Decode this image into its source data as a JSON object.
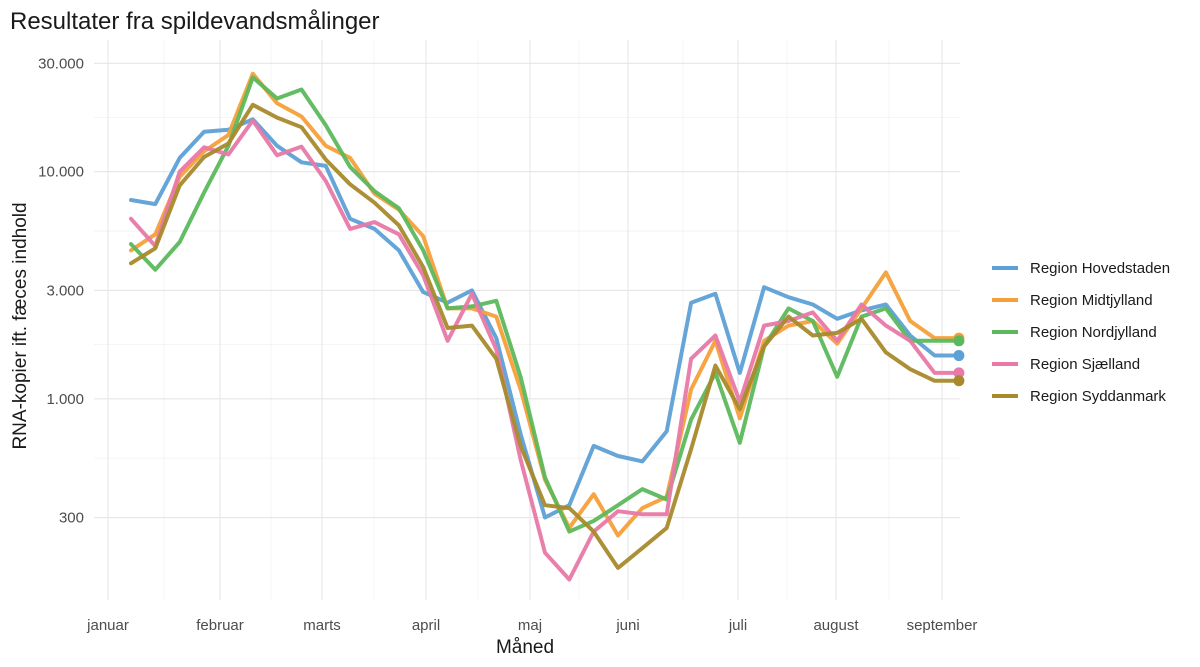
{
  "chart_data": {
    "type": "line",
    "title": "Resultater fra spildevandsmålinger",
    "xlabel": "Måned",
    "ylabel": "RNA-kopier ift. fæces indhold",
    "y_scale": "log",
    "ylim": [
      130,
      38000
    ],
    "y_ticks": [
      {
        "value": 300,
        "label": "300"
      },
      {
        "value": 1000,
        "label": "1.000"
      },
      {
        "value": 3000,
        "label": "3.000"
      },
      {
        "value": 10000,
        "label": "10.000"
      },
      {
        "value": 30000,
        "label": "30.000"
      }
    ],
    "x_ticks": [
      "januar",
      "februar",
      "marts",
      "april",
      "maj",
      "juni",
      "juli",
      "august",
      "september"
    ],
    "x_label_unit": "week",
    "grid": true,
    "legend_position": "right",
    "x": [
      1,
      2,
      3,
      4,
      5,
      6,
      7,
      8,
      9,
      10,
      11,
      12,
      13,
      14,
      15,
      16,
      17,
      18,
      19,
      20,
      21,
      22,
      23,
      24,
      25,
      26,
      27,
      28,
      29,
      30,
      31,
      32,
      33,
      34,
      35
    ],
    "series": [
      {
        "name": "Region Hovedstaden",
        "color": "#5da0d6",
        "values": [
          7500,
          7200,
          11500,
          15000,
          15300,
          17000,
          13000,
          11000,
          10600,
          6200,
          5600,
          4500,
          2950,
          2650,
          3000,
          1850,
          700,
          300,
          340,
          620,
          560,
          530,
          720,
          2650,
          2900,
          1300,
          3100,
          2800,
          2600,
          2250,
          2450,
          2600,
          1900,
          1550,
          1550
        ]
      },
      {
        "name": "Region Midtjylland",
        "color": "#f5a03a",
        "values": [
          4500,
          5300,
          9500,
          12300,
          14500,
          27000,
          20000,
          17500,
          13000,
          11500,
          8000,
          6800,
          5200,
          2500,
          2500,
          2300,
          1100,
          440,
          270,
          380,
          250,
          330,
          370,
          1100,
          1800,
          820,
          1800,
          2100,
          2200,
          1750,
          2500,
          3600,
          2200,
          1850,
          1850
        ]
      },
      {
        "name": "Region Nordjylland",
        "color": "#5cb85c",
        "values": [
          4800,
          3700,
          4900,
          8100,
          13000,
          26000,
          21000,
          23000,
          16000,
          10500,
          8200,
          6900,
          4500,
          2500,
          2550,
          2700,
          1250,
          450,
          260,
          290,
          340,
          400,
          360,
          810,
          1300,
          640,
          1700,
          2500,
          2200,
          1250,
          2300,
          2500,
          1800,
          1800,
          1800
        ]
      },
      {
        "name": "Region Sjælland",
        "color": "#e879a8",
        "values": [
          6200,
          4700,
          10000,
          12800,
          11900,
          16800,
          11800,
          12900,
          9100,
          5600,
          6000,
          5300,
          3500,
          1800,
          2900,
          1650,
          540,
          210,
          160,
          260,
          320,
          310,
          310,
          1500,
          1900,
          970,
          2100,
          2200,
          2400,
          1800,
          2600,
          2100,
          1800,
          1300,
          1300
        ]
      },
      {
        "name": "Region Syddanmark",
        "color": "#a88a2c",
        "values": [
          3950,
          4600,
          8700,
          11600,
          13300,
          19700,
          17300,
          15700,
          11300,
          8800,
          7300,
          5800,
          3800,
          2050,
          2100,
          1500,
          620,
          340,
          330,
          260,
          180,
          220,
          270,
          600,
          1400,
          900,
          1700,
          2300,
          1900,
          1950,
          2250,
          1600,
          1350,
          1200,
          1200
        ]
      }
    ]
  }
}
